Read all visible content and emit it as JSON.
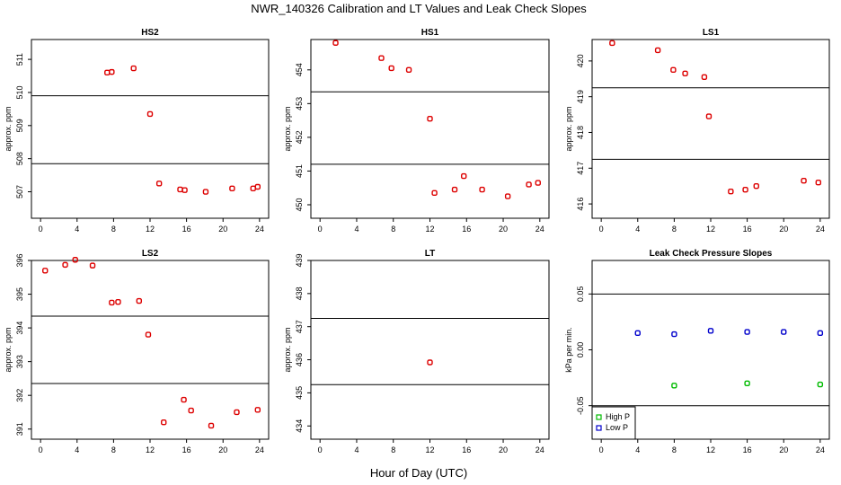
{
  "title": "NWR_140326  Calibration and LT Values and Leak Check Slopes",
  "xlabel": "Hour of Day (UTC)",
  "colors": {
    "red": "#dd0000",
    "green": "#00bb00",
    "blue": "#0000cc"
  },
  "chart_data": [
    {
      "type": "scatter",
      "title": "HS2",
      "ylabel": "approx. ppm",
      "xlim": [
        -1,
        25
      ],
      "ylim": [
        506.2,
        511.6
      ],
      "xticks": [
        0,
        4,
        8,
        12,
        16,
        20,
        24
      ],
      "yticks": [
        507,
        508,
        509,
        510,
        511
      ],
      "hlines": [
        507.85,
        509.9
      ],
      "series": [
        {
          "color": "red",
          "points": [
            [
              7.3,
              510.6
            ],
            [
              7.8,
              510.62
            ],
            [
              10.2,
              510.73
            ],
            [
              12.0,
              509.35
            ],
            [
              13.0,
              507.25
            ],
            [
              15.3,
              507.07
            ],
            [
              15.8,
              507.05
            ],
            [
              18.1,
              507.0
            ],
            [
              21.0,
              507.1
            ],
            [
              23.3,
              507.1
            ],
            [
              23.8,
              507.15
            ]
          ]
        }
      ]
    },
    {
      "type": "scatter",
      "title": "HS1",
      "ylabel": "approx. ppm",
      "xlim": [
        -1,
        25
      ],
      "ylim": [
        449.6,
        454.9
      ],
      "xticks": [
        0,
        4,
        8,
        12,
        16,
        20,
        24
      ],
      "yticks": [
        450,
        451,
        452,
        453,
        454
      ],
      "hlines": [
        451.2,
        453.35
      ],
      "series": [
        {
          "color": "red",
          "points": [
            [
              1.7,
              454.8
            ],
            [
              6.7,
              454.35
            ],
            [
              7.8,
              454.05
            ],
            [
              9.7,
              454.0
            ],
            [
              12.0,
              452.55
            ],
            [
              12.5,
              450.35
            ],
            [
              14.7,
              450.45
            ],
            [
              15.7,
              450.85
            ],
            [
              17.7,
              450.45
            ],
            [
              20.5,
              450.25
            ],
            [
              22.8,
              450.6
            ],
            [
              23.8,
              450.65
            ]
          ]
        }
      ]
    },
    {
      "type": "scatter",
      "title": "LS1",
      "ylabel": "approx. ppm",
      "xlim": [
        -1,
        25
      ],
      "ylim": [
        415.6,
        420.6
      ],
      "xticks": [
        0,
        4,
        8,
        12,
        16,
        20,
        24
      ],
      "yticks": [
        416,
        417,
        418,
        419,
        420
      ],
      "hlines": [
        417.25,
        419.25
      ],
      "series": [
        {
          "color": "red",
          "points": [
            [
              1.2,
              420.5
            ],
            [
              6.2,
              420.3
            ],
            [
              7.9,
              419.75
            ],
            [
              9.2,
              419.65
            ],
            [
              11.3,
              419.55
            ],
            [
              11.8,
              418.45
            ],
            [
              14.2,
              416.35
            ],
            [
              15.8,
              416.4
            ],
            [
              17.0,
              416.5
            ],
            [
              22.2,
              416.65
            ],
            [
              23.8,
              416.6
            ]
          ]
        }
      ]
    },
    {
      "type": "scatter",
      "title": "LS2",
      "ylabel": "approx. ppm",
      "xlim": [
        -1,
        25
      ],
      "ylim": [
        390.7,
        396.0
      ],
      "xticks": [
        0,
        4,
        8,
        12,
        16,
        20,
        24
      ],
      "yticks": [
        391,
        392,
        393,
        394,
        395,
        396
      ],
      "hlines": [
        392.35,
        394.35
      ],
      "series": [
        {
          "color": "red",
          "points": [
            [
              0.5,
              395.7
            ],
            [
              2.7,
              395.87
            ],
            [
              3.8,
              396.02
            ],
            [
              5.7,
              395.85
            ],
            [
              7.8,
              394.75
            ],
            [
              8.5,
              394.77
            ],
            [
              10.8,
              394.8
            ],
            [
              11.8,
              393.8
            ],
            [
              13.5,
              391.2
            ],
            [
              15.7,
              391.87
            ],
            [
              16.5,
              391.55
            ],
            [
              18.7,
              391.1
            ],
            [
              21.5,
              391.5
            ],
            [
              23.8,
              391.57
            ]
          ]
        }
      ]
    },
    {
      "type": "scatter",
      "title": "LT",
      "ylabel": "approx. ppm",
      "xlim": [
        -1,
        25
      ],
      "ylim": [
        433.6,
        439.0
      ],
      "xticks": [
        0,
        4,
        8,
        12,
        16,
        20,
        24
      ],
      "yticks": [
        434,
        435,
        436,
        437,
        438,
        439
      ],
      "hlines": [
        435.25,
        437.25
      ],
      "series": [
        {
          "color": "red",
          "points": [
            [
              12.0,
              435.92
            ]
          ]
        }
      ]
    },
    {
      "type": "scatter",
      "title": "Leak Check Pressure Slopes",
      "ylabel": "kPa per min.",
      "xlim": [
        -1,
        25
      ],
      "ylim": [
        -0.08,
        0.08
      ],
      "xticks": [
        0,
        4,
        8,
        12,
        16,
        20,
        24
      ],
      "yticks": [
        -0.05,
        0.0,
        0.05
      ],
      "ytick_labels": [
        "-0.05",
        "0.00",
        "0.05"
      ],
      "hlines": [
        -0.05,
        0.05
      ],
      "series": [
        {
          "name": "High P",
          "color": "green",
          "points": [
            [
              8,
              -0.032
            ],
            [
              16,
              -0.03
            ],
            [
              24,
              -0.031
            ]
          ]
        },
        {
          "name": "Low P",
          "color": "blue",
          "points": [
            [
              4,
              0.015
            ],
            [
              8,
              0.014
            ],
            [
              12,
              0.017
            ],
            [
              16,
              0.016
            ],
            [
              20,
              0.016
            ],
            [
              24,
              0.015
            ]
          ]
        }
      ],
      "legend": "bottom-left"
    }
  ]
}
